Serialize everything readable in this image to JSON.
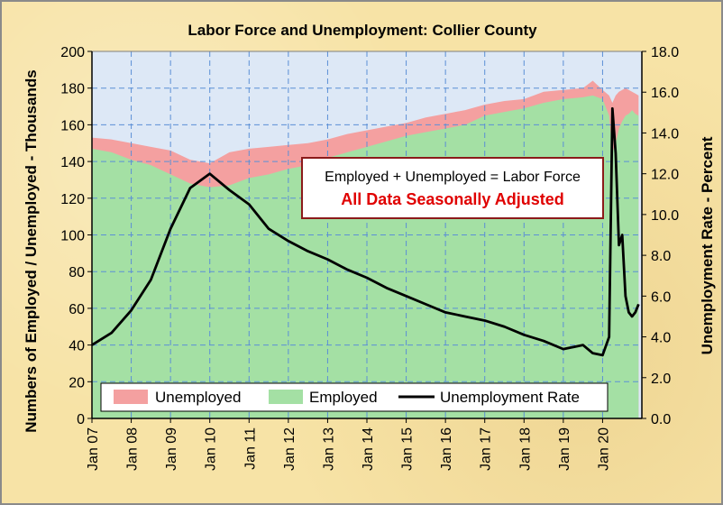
{
  "chart_data": {
    "type": "area",
    "title": "Labor Force and Unemployment: Collier County",
    "ylabel": "Numbers of Employed / Unemployed - Thousands",
    "y2label": "Unemployment Rate - Percent",
    "ylim": [
      0,
      200
    ],
    "y2lim": [
      0,
      18
    ],
    "yticks": [
      "0",
      "20",
      "40",
      "60",
      "80",
      "100",
      "120",
      "140",
      "160",
      "180",
      "200"
    ],
    "y2ticks": [
      "0.0",
      "2.0",
      "4.0",
      "6.0",
      "8.0",
      "10.0",
      "12.0",
      "14.0",
      "16.0",
      "18.0"
    ],
    "xticks": [
      "Jan 07",
      "Jan 08",
      "Jan 09",
      "Jan 10",
      "Jan 11",
      "Jan 12",
      "Jan 13",
      "Jan 14",
      "Jan 15",
      "Jan 16",
      "Jan 17",
      "Jan 18",
      "Jan 19",
      "Jan 20"
    ],
    "annotation_line1": "Employed + Unemployed = Labor Force",
    "annotation_line2": "All Data Seasonally Adjusted",
    "grid": true,
    "legend_position": "bottom",
    "legend": [
      "Unemployed",
      "Employed",
      "Unemployment Rate"
    ],
    "colors": {
      "unemployed": "#f4a0a0",
      "employed": "#a4e0a4",
      "rate": "#000000",
      "plot_bg": "#dde8f6",
      "grid": "#5b8fd6",
      "annotation_border": "#8b1a1a"
    },
    "x": [
      "2007-01",
      "2007-07",
      "2008-01",
      "2008-07",
      "2009-01",
      "2009-07",
      "2010-01",
      "2010-07",
      "2011-01",
      "2011-07",
      "2012-01",
      "2012-07",
      "2013-01",
      "2013-07",
      "2014-01",
      "2014-07",
      "2015-01",
      "2015-07",
      "2016-01",
      "2016-07",
      "2017-01",
      "2017-07",
      "2018-01",
      "2018-07",
      "2019-01",
      "2019-07",
      "2019-10",
      "2020-01",
      "2020-03",
      "2020-04",
      "2020-05",
      "2020-06",
      "2020-07",
      "2020-08",
      "2020-09",
      "2020-10",
      "2020-11",
      "2020-12"
    ],
    "series": [
      {
        "name": "Employed",
        "values": [
          147,
          145,
          141,
          138,
          133,
          128,
          126,
          127,
          131,
          133,
          136,
          138,
          142,
          145,
          148,
          151,
          154,
          156,
          158,
          160,
          165,
          167,
          169,
          172,
          174,
          175,
          176,
          174,
          165,
          145,
          150,
          158,
          162,
          165,
          166,
          168,
          166,
          165
        ]
      },
      {
        "name": "Labor Force",
        "values": [
          153,
          152,
          150,
          148,
          146,
          141,
          139,
          145,
          147,
          148,
          149,
          150,
          152,
          155,
          157,
          159,
          161,
          164,
          166,
          168,
          171,
          173,
          174,
          178,
          179,
          180,
          184,
          179,
          176,
          172,
          176,
          178,
          179,
          180,
          179,
          178,
          177,
          176
        ]
      },
      {
        "name": "Unemployment Rate",
        "values": [
          3.6,
          4.2,
          5.3,
          6.8,
          9.3,
          11.3,
          12.0,
          11.2,
          10.5,
          9.3,
          8.7,
          8.2,
          7.8,
          7.3,
          6.9,
          6.4,
          6.0,
          5.6,
          5.2,
          5.0,
          4.8,
          4.5,
          4.1,
          3.8,
          3.4,
          3.6,
          3.2,
          3.1,
          4.0,
          15.2,
          13.0,
          8.5,
          9.0,
          6.0,
          5.2,
          5.0,
          5.2,
          5.6
        ]
      }
    ]
  }
}
